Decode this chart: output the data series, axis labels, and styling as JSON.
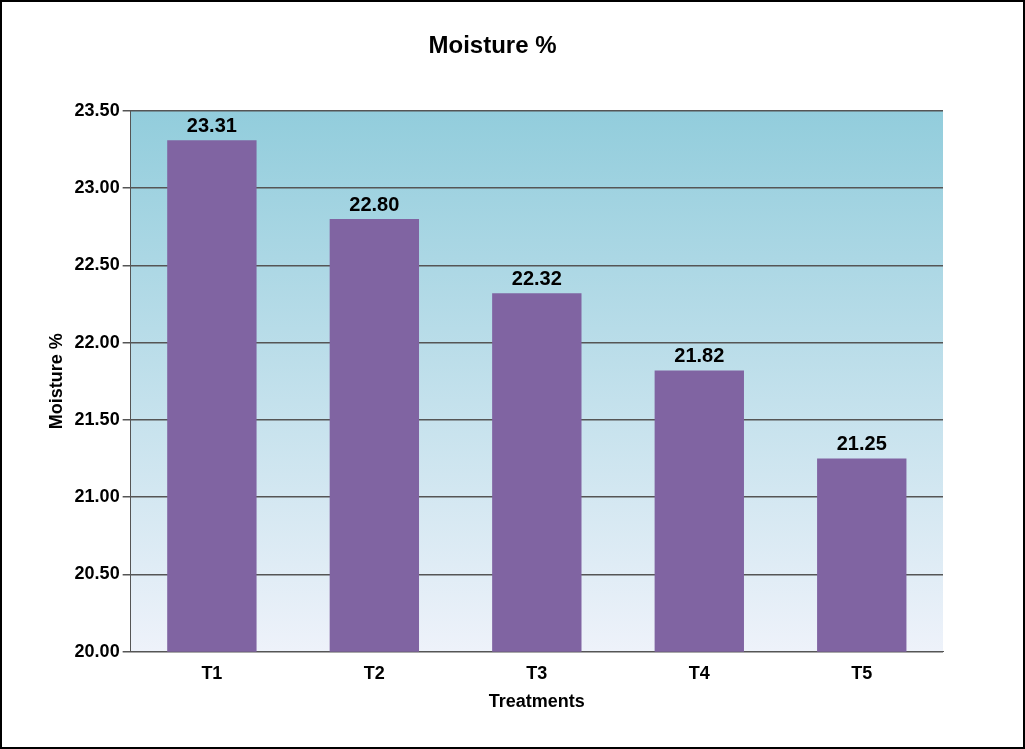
{
  "chart_data": {
    "type": "bar",
    "title": "Moisture %",
    "xlabel": "Treatments",
    "ylabel": "Moisture %",
    "categories": [
      "T1",
      "T2",
      "T3",
      "T4",
      "T5"
    ],
    "values": [
      23.31,
      22.8,
      22.32,
      21.82,
      21.25
    ],
    "value_labels": [
      "23.31",
      "22.80",
      "22.32",
      "21.82",
      "21.25"
    ],
    "color": "#8064a2",
    "ylim": [
      20,
      23.5
    ],
    "yticks": [
      {
        "value": 20,
        "label": "20.00"
      },
      {
        "value": 20.5,
        "label": "20.50"
      },
      {
        "value": 21,
        "label": "21.00"
      },
      {
        "value": 21.5,
        "label": "21.50"
      },
      {
        "value": 22,
        "label": "22.00"
      },
      {
        "value": 22.5,
        "label": "22.50"
      },
      {
        "value": 23,
        "label": "23.00"
      },
      {
        "value": 23.5,
        "label": "23.50"
      }
    ],
    "grid": "y",
    "legend": false
  }
}
